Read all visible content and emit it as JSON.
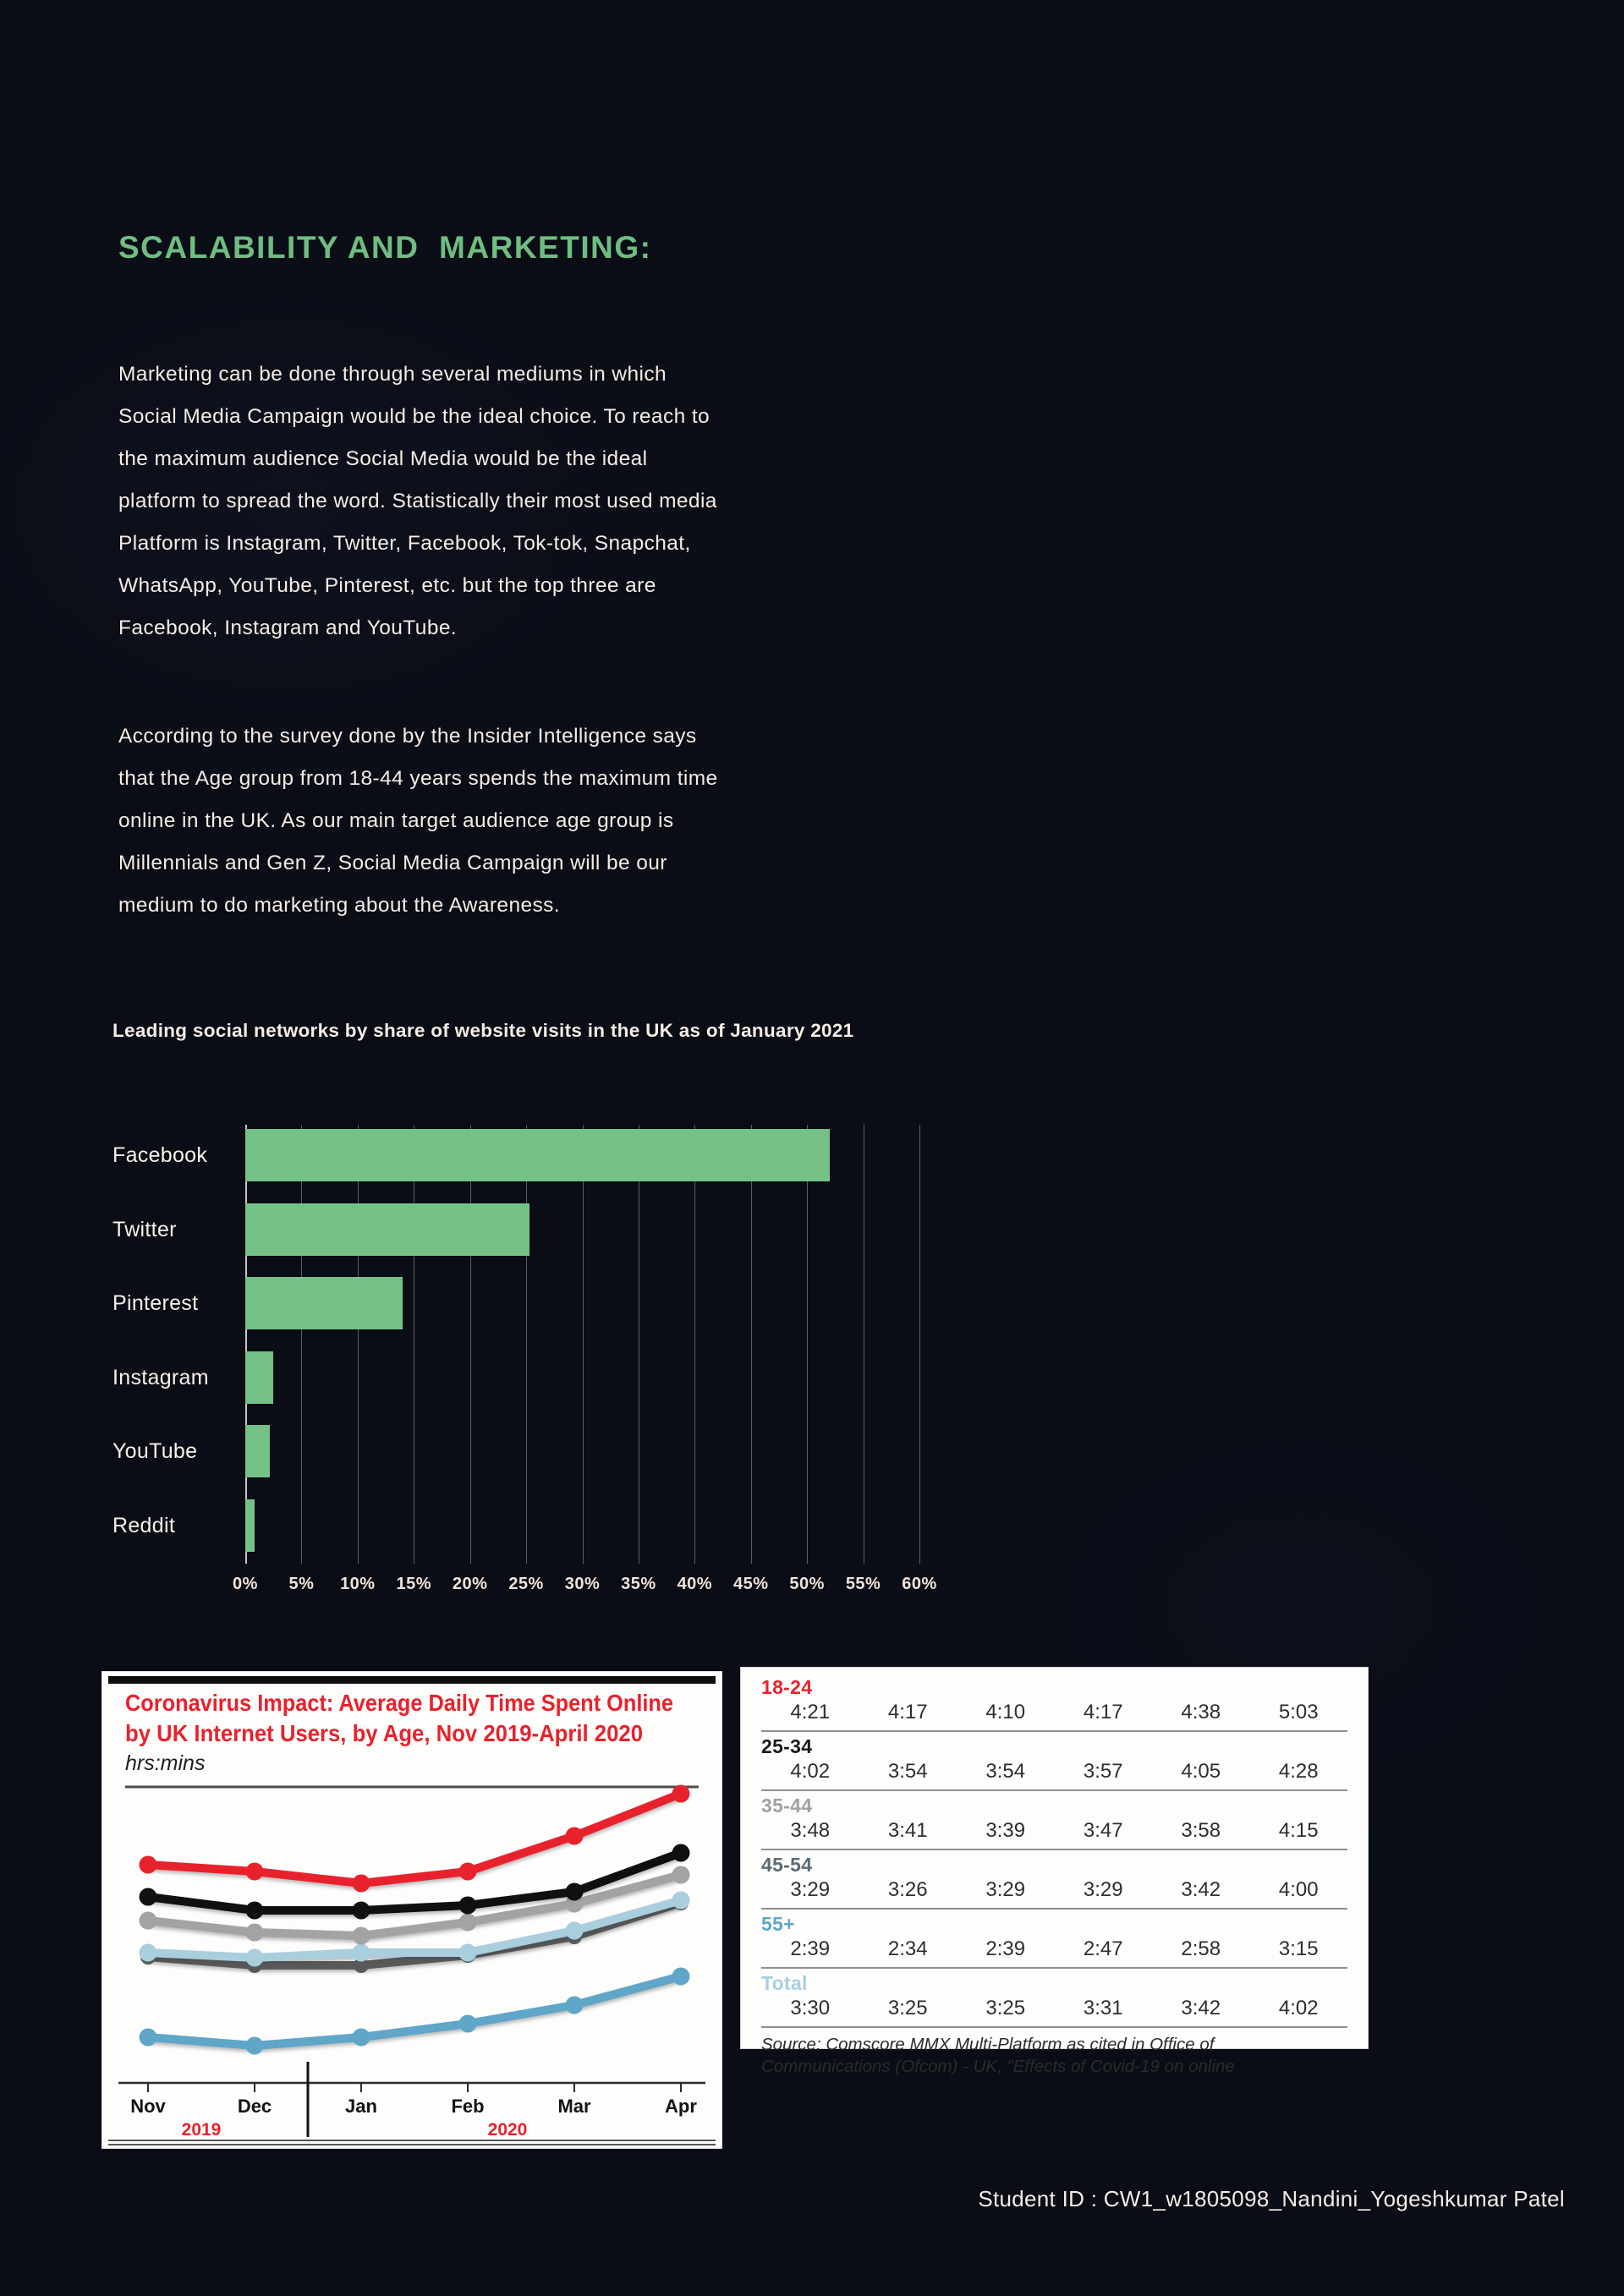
{
  "page": {
    "title": "SCALABILITY AND  MARKETING:",
    "paragraph1": "Marketing can be done through several mediums in which\nSocial Media Campaign would be the ideal choice. To reach to\nthe maximum audience Social Media would be the ideal\nplatform to spread the word. Statistically their most used media\nPlatform is Instagram, Twitter, Facebook, Tok-tok, Snapchat,\nWhatsApp, YouTube, Pinterest, etc. but the top three are\nFacebook, Instagram and YouTube.",
    "paragraph2": "According to the survey done by the Insider Intelligence says\nthat the Age group from 18-44 years spends the maximum time\nonline in the UK. As our main target audience age group is\nMillennials and Gen Z, Social Media Campaign will be our\nmedium to do marketing about the Awareness.",
    "footer": "Student ID : CW1_w1805098_Nandini_Yogeshkumar Patel"
  },
  "colors": {
    "background": "#0a0d15",
    "title_green": "#6fbd82",
    "body_text": "#f6ece6",
    "bar_green": "#74c287",
    "gridline": "#b59c91",
    "zero_line": "#e3dad4",
    "tick_text": "#f0e3da",
    "chart_red": "#e8222d",
    "panel_bg": "#fdfdfc"
  },
  "chart_data": [
    {
      "id": "social-share-bar",
      "type": "bar",
      "orientation": "horizontal",
      "title": "Leading social networks by share of website visits in the UK as of January 2021",
      "categories": [
        "Facebook",
        "Twitter",
        "Pinterest",
        "Instagram",
        "YouTube",
        "Reddit"
      ],
      "values": [
        52,
        25.3,
        14,
        2.5,
        2.2,
        0.8
      ],
      "unit": "%",
      "xlim": [
        0,
        60
      ],
      "xticks": [
        "0%",
        "5%",
        "10%",
        "15%",
        "20%",
        "25%",
        "30%",
        "35%",
        "40%",
        "45%",
        "50%",
        "55%",
        "60%"
      ],
      "grid": true,
      "bar_color": "#74c287"
    },
    {
      "id": "time-spent-online-line",
      "type": "line",
      "title": "Coronavirus Impact: Average Daily Time Spent Online by UK Internet Users, by Age, Nov 2019-April 2020",
      "title_lines": [
        "Coronavirus Impact: Average Daily Time Spent Online",
        "by UK Internet Users, by Age, Nov 2019-April 2020"
      ],
      "subtitle": "hrs:mins",
      "x": [
        "Nov",
        "Dec",
        "Jan",
        "Feb",
        "Mar",
        "Apr"
      ],
      "year_labels": [
        "2019",
        "2020"
      ],
      "ylabel": "hrs:mins",
      "series": [
        {
          "name": "18-24",
          "line_color": "#e8222d",
          "table_color": "#e8222d",
          "values_hm": [
            "4:21",
            "4:17",
            "4:10",
            "4:17",
            "4:38",
            "5:03"
          ]
        },
        {
          "name": "25-34",
          "line_color": "#101010",
          "table_color": "#1a1a1a",
          "values_hm": [
            "4:02",
            "3:54",
            "3:54",
            "3:57",
            "4:05",
            "4:28"
          ]
        },
        {
          "name": "35-44",
          "line_color": "#a5a2a3",
          "table_color": "#a2a0a1",
          "values_hm": [
            "3:48",
            "3:41",
            "3:39",
            "3:47",
            "3:58",
            "4:15"
          ]
        },
        {
          "name": "45-54",
          "line_color": "#a9cedd",
          "table_color": "#5a6a74",
          "values_hm": [
            "3:29",
            "3:26",
            "3:29",
            "3:29",
            "3:42",
            "4:00"
          ]
        },
        {
          "name": "55+",
          "line_color": "#5fa6c8",
          "table_color": "#5fa6c8",
          "values_hm": [
            "2:39",
            "2:34",
            "2:39",
            "2:47",
            "2:58",
            "3:15"
          ]
        },
        {
          "name": "Total",
          "line_color": "#58595b",
          "table_color": "#a7cfe2",
          "values_hm": [
            "3:30",
            "3:25",
            "3:25",
            "3:31",
            "3:42",
            "4:02"
          ]
        }
      ],
      "source": "Source: Comscore MMX Multi-Platform as cited in Office of\nCommunications (Ofcom) - UK, \"Effects of Covid-19 on online"
    }
  ]
}
